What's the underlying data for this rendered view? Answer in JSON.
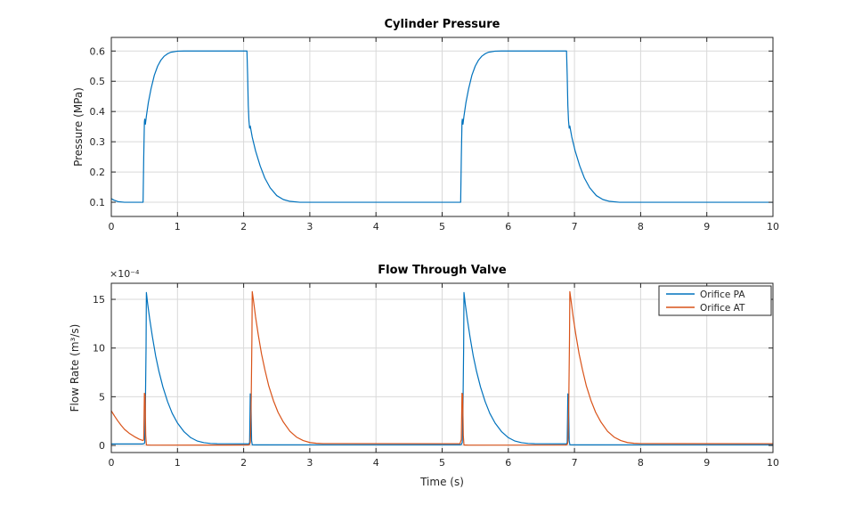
{
  "figure": {
    "background": "#ffffff"
  },
  "colors": {
    "axes_text": "#262626",
    "box": "#262626",
    "grid": "#d9d9d9",
    "legend_background": "#ffffff",
    "legend_border": "#262626",
    "series_blue": "#0072BD",
    "series_orange": "#D95319"
  },
  "chart_data": [
    {
      "id": "cylinder-pressure",
      "type": "line",
      "title": "Cylinder Pressure",
      "xlabel": "",
      "ylabel": "Pressure (MPa)",
      "y_multiplier": "",
      "xlim": [
        0,
        10
      ],
      "ylim": [
        0.053,
        0.645
      ],
      "xticks": [
        0,
        1,
        2,
        3,
        4,
        5,
        6,
        7,
        8,
        9,
        10
      ],
      "xticklabels": [
        "0",
        "1",
        "2",
        "3",
        "4",
        "5",
        "6",
        "7",
        "8",
        "9",
        "10"
      ],
      "yticks": [
        0.1,
        0.2,
        0.3,
        0.4,
        0.5,
        0.6
      ],
      "yticklabels": [
        "0.1",
        "0.2",
        "0.3",
        "0.4",
        "0.5",
        "0.6"
      ],
      "grid": true,
      "legend": null,
      "series": [
        {
          "name": "Pressure",
          "color": "#0072BD",
          "x": [
            0,
            0.04,
            0.1,
            0.2,
            0.48,
            0.49,
            0.5,
            0.505,
            0.515,
            0.53,
            0.56,
            0.6,
            0.65,
            0.7,
            0.75,
            0.8,
            0.85,
            0.9,
            1.0,
            1.1,
            2.05,
            2.06,
            2.07,
            2.08,
            2.09,
            2.1,
            2.13,
            2.18,
            2.25,
            2.32,
            2.4,
            2.5,
            2.6,
            2.7,
            2.85,
            5.28,
            5.29,
            5.3,
            5.305,
            5.315,
            5.33,
            5.36,
            5.4,
            5.45,
            5.5,
            5.55,
            5.6,
            5.65,
            5.7,
            5.8,
            5.9,
            6.88,
            6.89,
            6.9,
            6.91,
            6.92,
            6.93,
            6.96,
            7.01,
            7.08,
            7.15,
            7.23,
            7.33,
            7.43,
            7.53,
            7.68,
            10
          ],
          "y": [
            0.112,
            0.107,
            0.102,
            0.1,
            0.1,
            0.25,
            0.365,
            0.375,
            0.358,
            0.385,
            0.43,
            0.475,
            0.52,
            0.55,
            0.57,
            0.583,
            0.591,
            0.596,
            0.5995,
            0.6,
            0.6,
            0.52,
            0.42,
            0.37,
            0.345,
            0.352,
            0.315,
            0.27,
            0.22,
            0.18,
            0.148,
            0.122,
            0.109,
            0.103,
            0.1,
            0.1,
            0.25,
            0.365,
            0.375,
            0.358,
            0.385,
            0.43,
            0.475,
            0.52,
            0.55,
            0.57,
            0.583,
            0.591,
            0.596,
            0.5995,
            0.6,
            0.6,
            0.52,
            0.42,
            0.37,
            0.345,
            0.352,
            0.315,
            0.27,
            0.22,
            0.18,
            0.148,
            0.122,
            0.109,
            0.103,
            0.1,
            0.1
          ]
        }
      ]
    },
    {
      "id": "flow-through-valve",
      "type": "line",
      "title": "Flow Through Valve",
      "xlabel": "Time (s)",
      "ylabel": "Flow Rate  (m³/s)",
      "y_multiplier": "×10⁻⁴",
      "xlim": [
        0,
        10
      ],
      "ylim": [
        -0.73,
        16.65
      ],
      "xticks": [
        0,
        1,
        2,
        3,
        4,
        5,
        6,
        7,
        8,
        9,
        10
      ],
      "xticklabels": [
        "0",
        "1",
        "2",
        "3",
        "4",
        "5",
        "6",
        "7",
        "8",
        "9",
        "10"
      ],
      "yticks": [
        0,
        5,
        10,
        15
      ],
      "yticklabels": [
        "0",
        "5",
        "10",
        "15"
      ],
      "grid": true,
      "legend": {
        "position": "northeast",
        "entries": [
          "Orifice PA",
          "Orifice AT"
        ]
      },
      "series": [
        {
          "name": "Orifice PA",
          "color": "#0072BD",
          "x": [
            0,
            0.47,
            0.5,
            0.505,
            0.515,
            0.525,
            0.53,
            0.55,
            0.58,
            0.62,
            0.67,
            0.72,
            0.78,
            0.85,
            0.92,
            1.0,
            1.1,
            1.2,
            1.3,
            1.4,
            1.5,
            1.6,
            2.08,
            2.09,
            2.1,
            2.11,
            2.12,
            2.13,
            2.2,
            5.27,
            5.29,
            5.305,
            5.315,
            5.325,
            5.33,
            5.35,
            5.38,
            5.42,
            5.47,
            5.52,
            5.58,
            5.65,
            5.72,
            5.8,
            5.9,
            6.0,
            6.1,
            6.2,
            6.3,
            6.4,
            6.88,
            6.89,
            6.9,
            6.91,
            6.92,
            6.93,
            7.0,
            10
          ],
          "y": [
            0.15,
            0.15,
            0.2,
            0.3,
            4,
            10,
            15.7,
            14.5,
            13,
            11.2,
            9.2,
            7.6,
            6.0,
            4.5,
            3.3,
            2.3,
            1.4,
            0.8,
            0.45,
            0.28,
            0.2,
            0.17,
            0.16,
            0.3,
            5.3,
            5.2,
            0.5,
            0.07,
            0.06,
            0.07,
            0.1,
            0.3,
            4,
            10,
            15.7,
            14.5,
            13,
            11.2,
            9.2,
            7.6,
            6.0,
            4.5,
            3.3,
            2.3,
            1.4,
            0.8,
            0.45,
            0.28,
            0.2,
            0.17,
            0.16,
            0.3,
            5.3,
            5.2,
            0.5,
            0.07,
            0.06,
            0.07
          ]
        },
        {
          "name": "Orifice AT",
          "color": "#D95319",
          "x": [
            0,
            0.05,
            0.1,
            0.15,
            0.2,
            0.27,
            0.35,
            0.42,
            0.48,
            0.49,
            0.5,
            0.51,
            0.52,
            0.53,
            0.6,
            2.07,
            2.09,
            2.1,
            2.105,
            2.115,
            2.125,
            2.13,
            2.15,
            2.18,
            2.22,
            2.27,
            2.32,
            2.38,
            2.45,
            2.52,
            2.6,
            2.7,
            2.8,
            2.9,
            3.0,
            3.1,
            3.2,
            5.27,
            5.29,
            5.3,
            5.31,
            5.32,
            5.33,
            5.4,
            6.87,
            6.89,
            6.9,
            6.905,
            6.915,
            6.925,
            6.93,
            6.95,
            6.98,
            7.02,
            7.07,
            7.12,
            7.18,
            7.25,
            7.32,
            7.4,
            7.5,
            7.6,
            7.7,
            7.8,
            7.9,
            8.0,
            10
          ],
          "y": [
            3.55,
            3.0,
            2.5,
            2.05,
            1.65,
            1.25,
            0.9,
            0.65,
            0.5,
            0.6,
            5.35,
            5.2,
            1.0,
            0.05,
            0.03,
            0.04,
            0.1,
            0.3,
            1.0,
            5.0,
            11.0,
            15.8,
            14.8,
            13.2,
            11.4,
            9.4,
            7.8,
            6.1,
            4.6,
            3.4,
            2.4,
            1.45,
            0.85,
            0.5,
            0.3,
            0.22,
            0.19,
            0.18,
            0.6,
            5.35,
            5.2,
            1.0,
            0.05,
            0.03,
            0.04,
            0.1,
            0.3,
            1.0,
            5.0,
            11.0,
            15.8,
            14.8,
            13.2,
            11.4,
            9.4,
            7.8,
            6.1,
            4.6,
            3.4,
            2.4,
            1.45,
            0.85,
            0.5,
            0.3,
            0.22,
            0.19,
            0.18
          ]
        }
      ]
    }
  ]
}
